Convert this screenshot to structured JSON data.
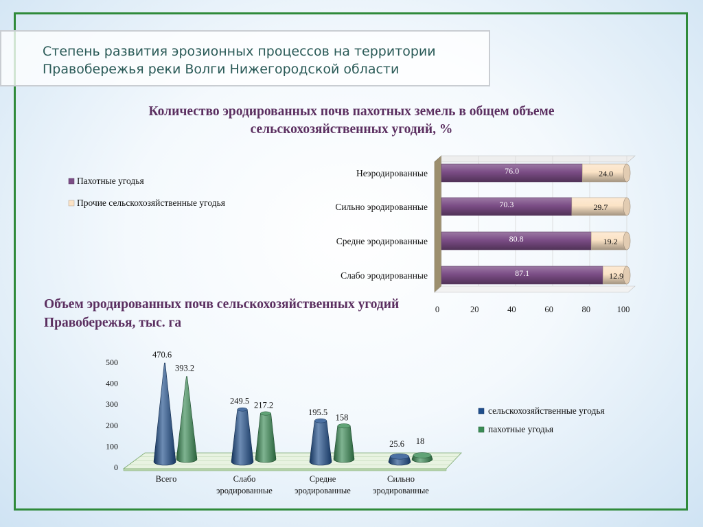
{
  "slide": {
    "title": "Степень развития эрозионных процессов на территории Правобережья реки Волги Нижегородской области"
  },
  "colors": {
    "frame": "#2f8a3a",
    "purple": "#7b4d86",
    "beige": "#fbe3c6",
    "blue": "#1f4e8c",
    "green": "#3a8c55",
    "title_text": "#2a5a57",
    "chart_title_text": "#5b2f60"
  },
  "chart_data": [
    {
      "type": "bar",
      "orientation": "horizontal",
      "stacked": true,
      "title": "Количество эродированных почв пахотных земель в общем объеме сельскохозяйственных угодий, %",
      "categories": [
        "Неэродированные",
        "Сильно эродированные",
        "Средне эродированные",
        "Слабо эродированные"
      ],
      "series": [
        {
          "name": "Пахотные угодья",
          "values": [
            76.0,
            70.3,
            80.8,
            87.1
          ],
          "color": "#7b4d86"
        },
        {
          "name": "Прочие сельскохозяйственные угодья",
          "values": [
            24.0,
            29.7,
            19.2,
            12.9
          ],
          "color": "#fbe3c6"
        }
      ],
      "value_labels": [
        [
          "76.0",
          "70.3",
          "80.8",
          "87.1"
        ],
        [
          "24.0",
          "29.7",
          "19.2",
          "12.9"
        ]
      ],
      "xlim": [
        0,
        100
      ],
      "xticks": [
        "0",
        "20",
        "40",
        "60",
        "80",
        "100"
      ],
      "legend_position": "left"
    },
    {
      "type": "bar",
      "style": "3d-cone",
      "title": "Объем эродированных почв сельскохозяйственных угодий Правобережья, тыс. га",
      "categories": [
        "Всего",
        "Слабо эродированные",
        "Средне эродированные",
        "Сильно эродированные"
      ],
      "category_lines": [
        [
          "Всего"
        ],
        [
          "Слабо",
          "эродированные"
        ],
        [
          "Средне",
          "эродированные"
        ],
        [
          "Сильно",
          "эродированные"
        ]
      ],
      "series": [
        {
          "name": "сельскохозяйственные угодья",
          "values": [
            470.6,
            249.5,
            195.5,
            25.6
          ],
          "color": "#1f4e8c"
        },
        {
          "name": "пахотные угодья",
          "values": [
            393.2,
            217.2,
            158,
            18
          ],
          "color": "#3a8c55"
        }
      ],
      "value_labels": [
        [
          "470.6",
          "249.5",
          "195.5",
          "25.6"
        ],
        [
          "393.2",
          "217.2",
          "158",
          "18"
        ]
      ],
      "ylim": [
        0,
        500
      ],
      "yticks": [
        "0",
        "100",
        "200",
        "300",
        "400",
        "500"
      ],
      "legend_position": "right"
    }
  ]
}
